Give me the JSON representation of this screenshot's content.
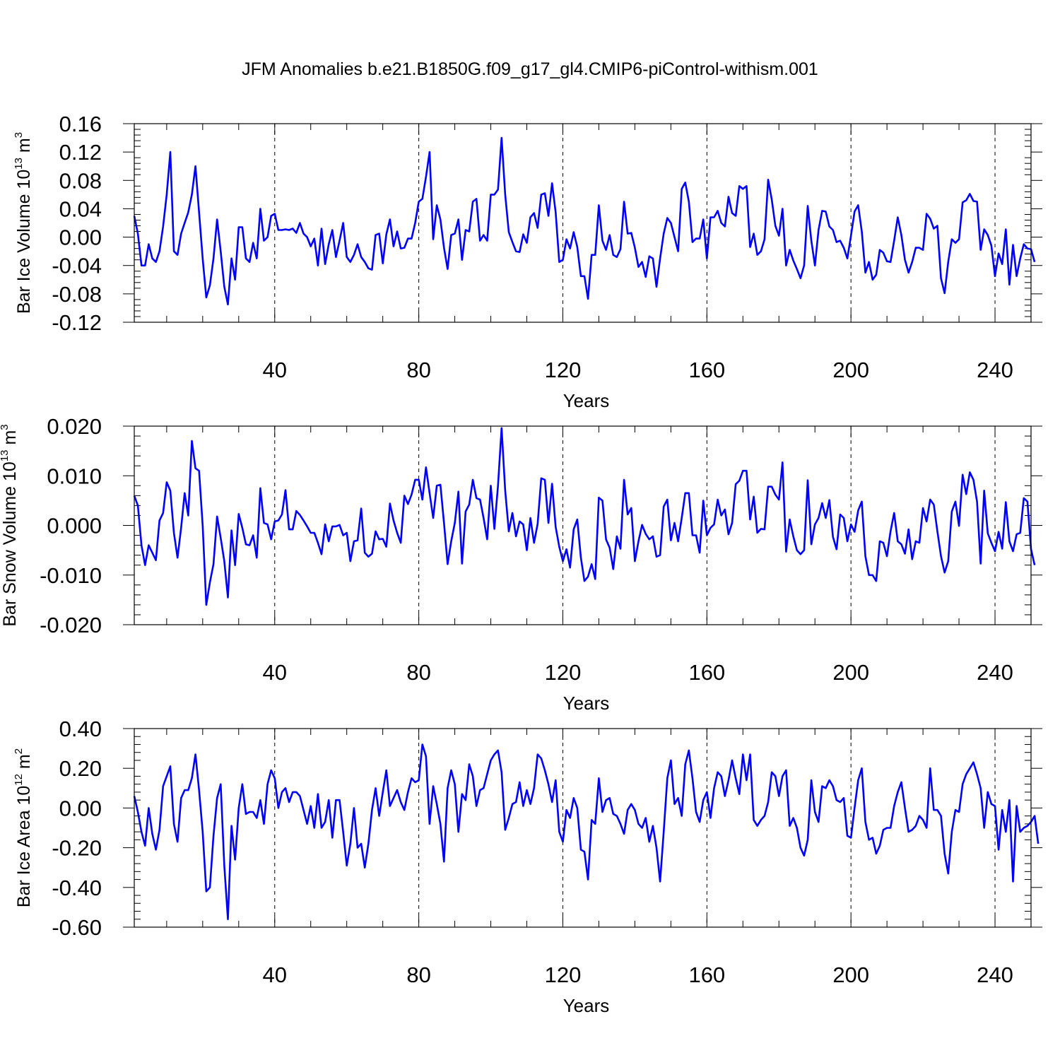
{
  "title": "JFM Anomalies b.e21.B1850G.f09_g17_gl4.CMIP6-piControl-withism.001",
  "line_color": "#0000ff",
  "chart_data": [
    {
      "type": "line",
      "xlabel": "Years",
      "ylabel": "Bar Ice Volume 10",
      "ylabel_sup": "13",
      "ylabel_unit": " m",
      "ylabel_unit_sup": "3",
      "xlim": [
        1,
        250
      ],
      "ylim": [
        -0.12,
        0.16
      ],
      "xticks": [
        40,
        80,
        120,
        160,
        200,
        240
      ],
      "yticks": [
        -0.12,
        -0.08,
        -0.04,
        0.0,
        0.04,
        0.08,
        0.12,
        0.16
      ],
      "ytick_labels": [
        "-0.12",
        "-0.08",
        "-0.04",
        "0.00",
        "0.04",
        "0.08",
        "0.12",
        "0.16"
      ],
      "grid": "dashed vertical at x ticks",
      "series": [
        {
          "values": [
            0.03,
            0.005,
            -0.04,
            -0.04,
            -0.01,
            -0.03,
            -0.035,
            -0.02,
            0.015,
            0.06,
            0.12,
            -0.02,
            -0.025,
            0.005,
            0.02,
            0.035,
            0.06,
            0.1,
            0.035,
            -0.03,
            -0.085,
            -0.068,
            -0.03,
            0.025,
            -0.02,
            -0.07,
            -0.095,
            -0.03,
            -0.06,
            0.014,
            0.014,
            -0.03,
            -0.035,
            -0.008,
            -0.03,
            0.04,
            -0.005,
            0.0,
            0.03,
            0.033,
            0.01,
            0.01,
            0.011,
            0.01,
            0.012,
            0.006,
            0.02,
            0.005,
            0.0,
            -0.013,
            -0.002,
            -0.04,
            0.012,
            -0.038,
            -0.01,
            0.01,
            -0.028,
            -0.005,
            0.02,
            -0.028,
            -0.035,
            -0.025,
            -0.01,
            -0.028,
            -0.035,
            -0.044,
            -0.046,
            0.003,
            0.005,
            -0.037,
            0.004,
            0.025,
            -0.013,
            0.008,
            -0.016,
            -0.015,
            -0.002,
            -0.002,
            0.02,
            0.05,
            0.054,
            0.085,
            0.12,
            -0.003,
            0.045,
            0.025,
            -0.015,
            -0.045,
            0.003,
            0.005,
            0.025,
            -0.032,
            0.01,
            0.008,
            0.05,
            0.054,
            -0.005,
            0.003,
            -0.005,
            0.06,
            0.06,
            0.067,
            0.14,
            0.06,
            0.007,
            -0.007,
            -0.02,
            -0.021,
            0.004,
            -0.008,
            0.028,
            0.034,
            0.013,
            0.06,
            0.062,
            0.03,
            0.076,
            0.035,
            -0.035,
            -0.032,
            -0.003,
            -0.016,
            0.007,
            -0.014,
            -0.055,
            -0.055,
            -0.087,
            -0.025,
            -0.025,
            0.045,
            -0.005,
            -0.018,
            0.003,
            -0.025,
            -0.028,
            -0.017,
            0.05,
            0.005,
            0.006,
            -0.015,
            -0.042,
            -0.035,
            -0.056,
            -0.027,
            -0.03,
            -0.07,
            -0.03,
            0.005,
            0.027,
            0.02,
            0.0,
            -0.02,
            0.068,
            0.077,
            0.05,
            -0.007,
            -0.002,
            -0.002,
            0.025,
            -0.03,
            0.028,
            0.028,
            0.037,
            0.02,
            0.015,
            0.057,
            0.034,
            0.03,
            0.072,
            0.068,
            0.072,
            -0.014,
            0.005,
            -0.025,
            -0.02,
            -0.003,
            0.081,
            0.053,
            0.016,
            0.002,
            0.04,
            -0.04,
            -0.018,
            -0.033,
            -0.045,
            -0.058,
            -0.04,
            0.044,
            -0.005,
            -0.04,
            0.01,
            0.037,
            0.036,
            0.015,
            0.01,
            -0.007,
            -0.005,
            -0.015,
            -0.03,
            0.002,
            0.036,
            0.045,
            0.008,
            -0.05,
            -0.035,
            -0.06,
            -0.053,
            -0.018,
            -0.022,
            -0.034,
            -0.035,
            -0.005,
            0.028,
            0.003,
            -0.032,
            -0.05,
            -0.035,
            -0.015,
            -0.015,
            -0.018,
            0.033,
            0.026,
            0.012,
            0.016,
            -0.058,
            -0.079,
            -0.035,
            -0.003,
            -0.008,
            -0.003,
            0.049,
            0.052,
            0.061,
            0.051,
            0.05,
            -0.018,
            0.011,
            0.003,
            -0.012,
            -0.055,
            -0.023,
            -0.038,
            0.011,
            -0.067,
            -0.011,
            -0.055,
            -0.03,
            -0.01,
            -0.016,
            -0.017,
            -0.035
          ]
        }
      ]
    },
    {
      "type": "line",
      "xlabel": "Years",
      "ylabel": "Bar Snow Volume 10",
      "ylabel_sup": "13",
      "ylabel_unit": " m",
      "ylabel_unit_sup": "3",
      "xlim": [
        1,
        250
      ],
      "ylim": [
        -0.02,
        0.02
      ],
      "xticks": [
        40,
        80,
        120,
        160,
        200,
        240
      ],
      "yticks": [
        -0.02,
        -0.01,
        0.0,
        0.01,
        0.02
      ],
      "ytick_labels": [
        "-0.020",
        "-0.010",
        "0.000",
        "0.010",
        "0.020"
      ],
      "grid": "dashed vertical at x ticks",
      "series": [
        {
          "values": [
            0.006,
            0.004,
            -0.004,
            -0.008,
            -0.004,
            -0.0055,
            -0.007,
            0.001,
            0.0025,
            0.0087,
            0.007,
            -0.0015,
            -0.0065,
            -0.0005,
            0.0065,
            0.002,
            0.017,
            0.0115,
            0.011,
            0.0,
            -0.016,
            -0.0115,
            -0.0078,
            0.0018,
            -0.0025,
            -0.0072,
            -0.0145,
            -0.001,
            -0.008,
            0.0023,
            -0.0005,
            -0.0038,
            -0.004,
            -0.002,
            -0.0065,
            0.0075,
            0.0005,
            0.0002,
            -0.0028,
            0.0008,
            0.001,
            0.0022,
            0.0071,
            -0.0008,
            -0.0008,
            0.0029,
            0.0021,
            0.001,
            -0.0002,
            -0.0015,
            -0.0015,
            -0.0035,
            -0.0058,
            0.0002,
            -0.0032,
            -0.0002,
            -0.0002,
            0.0001,
            -0.002,
            -0.0015,
            -0.0072,
            -0.0032,
            -0.003,
            0.0034,
            -0.0055,
            -0.0063,
            -0.0057,
            -0.0012,
            -0.0028,
            -0.0027,
            -0.0043,
            0.0044,
            0.001,
            -0.0015,
            -0.0035,
            0.006,
            0.0043,
            0.0062,
            0.0092,
            0.0092,
            0.0052,
            0.0117,
            0.0065,
            0.0015,
            0.008,
            0.0082,
            0.0005,
            -0.0078,
            -0.0032,
            0.0005,
            0.0068,
            -0.0077,
            0.0028,
            0.0042,
            0.0092,
            0.0055,
            0.0052,
            0.0015,
            -0.0028,
            0.008,
            -0.0007,
            0.008,
            0.0196,
            0.007,
            -0.0012,
            0.0025,
            -0.0022,
            0.0008,
            0.0002,
            -0.005,
            0.0015,
            -0.0035,
            0.0003,
            0.0095,
            0.0092,
            0.0005,
            0.0084,
            -0.0003,
            -0.0043,
            -0.0072,
            -0.0048,
            -0.0085,
            -0.0008,
            0.0012,
            -0.0065,
            -0.0112,
            -0.0103,
            -0.0078,
            -0.0108,
            0.0056,
            0.005,
            -0.0028,
            -0.0045,
            -0.0088,
            -0.0022,
            -0.0047,
            0.0092,
            0.0022,
            0.0035,
            -0.0072,
            -0.0032,
            0.0001,
            -0.0017,
            -0.0028,
            -0.0022,
            -0.0063,
            -0.006,
            0.0038,
            0.0052,
            -0.003,
            0.0005,
            -0.0032,
            0.0015,
            0.0065,
            0.0065,
            -0.002,
            -0.002,
            -0.0055,
            0.005,
            -0.002,
            -0.0005,
            0.0002,
            0.0052,
            0.002,
            0.0032,
            -0.0018,
            0.0005,
            0.0083,
            0.009,
            0.011,
            0.011,
            0.0012,
            0.0058,
            -0.0015,
            -0.0007,
            -0.0008,
            0.0078,
            0.0078,
            0.0062,
            0.0052,
            0.0127,
            -0.0053,
            0.0012,
            -0.0022,
            -0.005,
            -0.0058,
            -0.005,
            0.0091,
            -0.0038,
            0.0002,
            0.0015,
            0.0045,
            0.0015,
            0.0051,
            -0.0023,
            -0.0048,
            0.0022,
            0.0015,
            -0.0032,
            0.0002,
            -0.0013,
            0.003,
            0.0048,
            -0.0062,
            -0.01,
            -0.01,
            -0.0112,
            -0.0032,
            -0.0035,
            -0.0062,
            -0.0012,
            0.0025,
            -0.0032,
            -0.0038,
            -0.0057,
            -0.0008,
            -0.0068,
            -0.0032,
            -0.0035,
            0.0035,
            0.0008,
            0.0052,
            0.0042,
            -0.0012,
            -0.0062,
            -0.0095,
            -0.0072,
            0.0028,
            0.0048,
            -0.0001,
            0.0102,
            0.0063,
            0.0107,
            0.0092,
            0.0048,
            -0.0077,
            0.007,
            -0.0016,
            -0.0035,
            -0.0052,
            -0.0013,
            -0.0047,
            0.0047,
            -0.0032,
            -0.0052,
            -0.0018,
            -0.0015,
            0.0055,
            0.0048,
            -0.0048,
            -0.008
          ]
        }
      ]
    },
    {
      "type": "line",
      "xlabel": "Years",
      "ylabel": "Bar Ice Area 10",
      "ylabel_sup": "12",
      "ylabel_unit": " m",
      "ylabel_unit_sup": "2",
      "xlim": [
        1,
        250
      ],
      "ylim": [
        -0.6,
        0.4
      ],
      "xticks": [
        40,
        80,
        120,
        160,
        200,
        240
      ],
      "yticks": [
        -0.6,
        -0.4,
        -0.2,
        0.0,
        0.2,
        0.4
      ],
      "ytick_labels": [
        "-0.60",
        "-0.40",
        "-0.20",
        "0.00",
        "0.20",
        "0.40"
      ],
      "grid": "dashed vertical at x ticks",
      "series": [
        {
          "values": [
            0.06,
            -0.02,
            -0.12,
            -0.19,
            0.0,
            -0.13,
            -0.21,
            -0.11,
            0.11,
            0.16,
            0.21,
            -0.08,
            -0.17,
            0.05,
            0.09,
            0.09,
            0.15,
            0.27,
            0.09,
            -0.12,
            -0.42,
            -0.4,
            -0.14,
            0.05,
            0.12,
            -0.29,
            -0.56,
            -0.09,
            -0.26,
            0.0,
            0.12,
            -0.03,
            -0.02,
            -0.02,
            -0.05,
            0.04,
            -0.08,
            0.12,
            0.19,
            0.15,
            0.0,
            0.08,
            0.1,
            0.03,
            0.08,
            0.08,
            0.06,
            -0.01,
            -0.08,
            0.01,
            -0.1,
            0.07,
            -0.1,
            -0.07,
            0.04,
            -0.15,
            0.04,
            0.04,
            -0.12,
            -0.29,
            -0.18,
            0.0,
            -0.2,
            -0.18,
            -0.3,
            -0.18,
            -0.01,
            0.1,
            -0.04,
            0.08,
            0.19,
            0.01,
            0.05,
            0.09,
            0.03,
            -0.01,
            0.08,
            0.15,
            0.13,
            0.14,
            0.32,
            0.26,
            -0.08,
            0.11,
            0.02,
            -0.08,
            -0.27,
            0.1,
            0.19,
            0.12,
            -0.12,
            0.07,
            0.04,
            0.22,
            0.16,
            0.01,
            0.09,
            0.1,
            0.17,
            0.24,
            0.27,
            0.29,
            0.18,
            -0.11,
            -0.05,
            0.02,
            0.03,
            0.13,
            0.01,
            0.09,
            0.02,
            0.1,
            0.27,
            0.25,
            0.19,
            0.12,
            0.03,
            0.14,
            -0.12,
            -0.17,
            -0.01,
            -0.05,
            0.05,
            0.0,
            -0.21,
            -0.22,
            -0.36,
            -0.06,
            -0.08,
            0.15,
            -0.02,
            0.04,
            0.05,
            -0.03,
            -0.04,
            -0.08,
            -0.13,
            -0.01,
            0.02,
            -0.01,
            -0.08,
            -0.1,
            -0.05,
            -0.17,
            -0.09,
            -0.2,
            -0.37,
            -0.12,
            0.15,
            0.24,
            0.02,
            0.05,
            -0.04,
            0.22,
            0.29,
            0.15,
            -0.02,
            -0.07,
            0.04,
            0.08,
            -0.05,
            0.1,
            0.18,
            0.16,
            0.06,
            0.14,
            0.24,
            0.15,
            0.07,
            0.27,
            0.14,
            0.27,
            -0.06,
            -0.09,
            -0.06,
            -0.04,
            0.03,
            0.18,
            0.16,
            0.06,
            0.16,
            0.19,
            -0.09,
            -0.05,
            -0.1,
            -0.2,
            -0.24,
            -0.16,
            0.14,
            -0.02,
            -0.07,
            0.11,
            0.1,
            0.14,
            0.11,
            0.04,
            0.03,
            0.05,
            -0.14,
            -0.15,
            0.0,
            0.14,
            0.2,
            -0.07,
            -0.16,
            -0.15,
            -0.23,
            -0.19,
            -0.11,
            -0.1,
            -0.1,
            0.01,
            0.08,
            0.13,
            0.0,
            -0.12,
            -0.11,
            -0.09,
            -0.04,
            -0.06,
            -0.1,
            0.2,
            -0.01,
            -0.01,
            -0.04,
            -0.23,
            -0.33,
            -0.12,
            -0.01,
            -0.02,
            0.12,
            0.17,
            0.2,
            0.23,
            0.17,
            0.1,
            -0.1,
            0.08,
            0.02,
            0.01,
            -0.21,
            -0.01,
            -0.12,
            0.04,
            -0.37,
            0.01,
            -0.12,
            -0.1,
            -0.09,
            -0.07,
            -0.04,
            -0.18
          ]
        }
      ]
    }
  ]
}
